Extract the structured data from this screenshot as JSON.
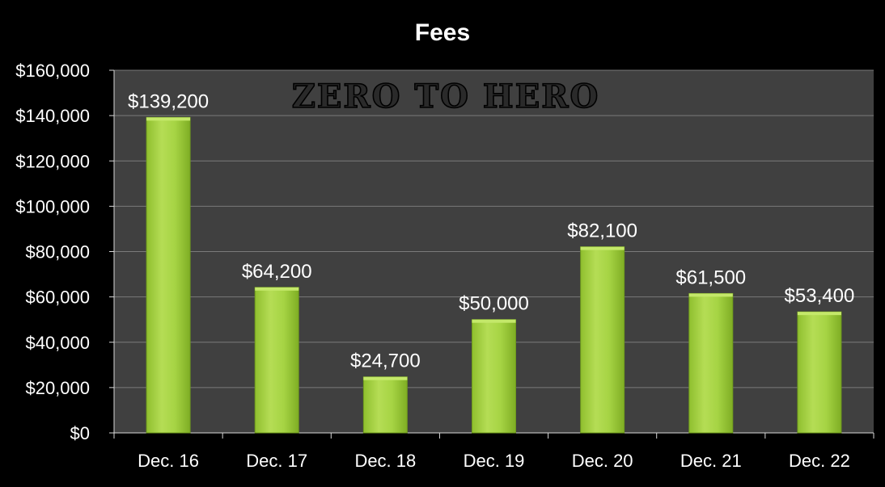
{
  "chart_data": {
    "type": "bar",
    "title": "Fees",
    "watermark": "ZERO TO HERO",
    "categories": [
      "Dec. 16",
      "Dec. 17",
      "Dec. 18",
      "Dec. 19",
      "Dec. 20",
      "Dec. 21",
      "Dec. 22"
    ],
    "values": [
      139200,
      64200,
      24700,
      50000,
      82100,
      61500,
      53400
    ],
    "value_labels": [
      "$139,200",
      "$64,200",
      "$24,700",
      "$50,000",
      "$82,100",
      "$61,500",
      "$53,400"
    ],
    "yticks": [
      0,
      20000,
      40000,
      60000,
      80000,
      100000,
      120000,
      140000,
      160000
    ],
    "ytick_labels": [
      "$0",
      "$20,000",
      "$40,000",
      "$60,000",
      "$80,000",
      "$100,000",
      "$120,000",
      "$140,000",
      "$160,000"
    ],
    "ylim": [
      0,
      160000
    ],
    "xlabel": "",
    "ylabel": "",
    "grid": true,
    "colors": {
      "background": "#000000",
      "plot_area": "#404040",
      "gridline": "#7a7a7a",
      "bar_fill": "#9ccc3c",
      "bar_highlight": "#c4e86a",
      "text": "#ffffff"
    }
  }
}
